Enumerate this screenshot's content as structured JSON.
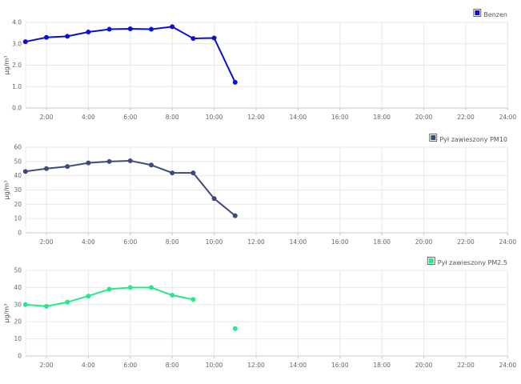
{
  "chart_data": [
    {
      "type": "line",
      "x_ticks": [
        "2:00",
        "4:00",
        "6:00",
        "8:00",
        "10:00",
        "12:00",
        "14:00",
        "16:00",
        "18:00",
        "20:00",
        "22:00",
        "24:00"
      ],
      "xlim": [
        1,
        24
      ],
      "ylim": [
        0,
        4
      ],
      "y_ticks": [
        "0.0",
        "1.0",
        "2.0",
        "3.0",
        "4.0"
      ],
      "ylabel": "µg/m³",
      "grid": true,
      "legend_position": "top-right",
      "series": [
        {
          "name": "Benzen",
          "color": "#0a10d0",
          "x": [
            1,
            2,
            3,
            4,
            5,
            6,
            7,
            8,
            9,
            10,
            11
          ],
          "y": [
            3.1,
            3.3,
            3.35,
            3.55,
            3.68,
            3.7,
            3.68,
            3.8,
            3.25,
            3.27,
            1.2
          ]
        }
      ]
    },
    {
      "type": "line",
      "x_ticks": [
        "2:00",
        "4:00",
        "6:00",
        "8:00",
        "10:00",
        "12:00",
        "14:00",
        "16:00",
        "18:00",
        "20:00",
        "22:00",
        "24:00"
      ],
      "xlim": [
        1,
        24
      ],
      "ylim": [
        0,
        60
      ],
      "y_ticks": [
        "0",
        "10",
        "20",
        "30",
        "40",
        "50",
        "60"
      ],
      "ylabel": "µg/m³",
      "grid": true,
      "legend_position": "top-right",
      "series": [
        {
          "name": "Pył zawieszony PM10",
          "color": "#3d4a7a",
          "x": [
            1,
            2,
            3,
            4,
            5,
            6,
            7,
            8,
            9,
            10,
            11
          ],
          "y": [
            43,
            45,
            46.5,
            49,
            50,
            50.5,
            47.5,
            42,
            42,
            24,
            12
          ]
        }
      ]
    },
    {
      "type": "line",
      "x_ticks": [
        "2:00",
        "4:00",
        "6:00",
        "8:00",
        "10:00",
        "12:00",
        "14:00",
        "16:00",
        "18:00",
        "20:00",
        "22:00",
        "24:00"
      ],
      "xlim": [
        1,
        24
      ],
      "ylim": [
        0,
        50
      ],
      "y_ticks": [
        "0",
        "10",
        "20",
        "30",
        "40",
        "50"
      ],
      "ylabel": "µg/m³",
      "grid": true,
      "legend_position": "top-right",
      "series": [
        {
          "name": "Pył zawieszony PM2.5",
          "color": "#27e88a",
          "x": [
            1,
            2,
            3,
            4,
            5,
            6,
            7,
            8,
            9,
            10,
            11
          ],
          "y": [
            30,
            29,
            31.5,
            35,
            39,
            40,
            40,
            35.5,
            33,
            null,
            16
          ]
        }
      ]
    }
  ]
}
